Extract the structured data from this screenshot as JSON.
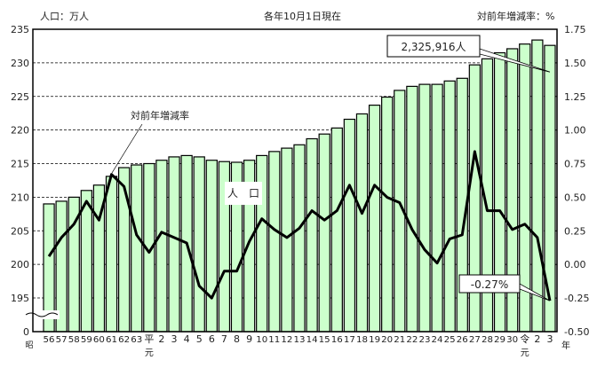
{
  "chart_data": {
    "type": "bar+line",
    "title": "各年10月1日現在",
    "left_axis_label": "人口：万人",
    "right_axis_label": "対前年増減率：%",
    "x_unit_label": "年",
    "era_labels": {
      "showa": "昭",
      "heisei": "平",
      "reiwa": "令",
      "gan": "元"
    },
    "categories": [
      "56",
      "57",
      "58",
      "59",
      "60",
      "61",
      "62",
      "63",
      "平元",
      "2",
      "3",
      "4",
      "5",
      "6",
      "7",
      "8",
      "9",
      "10",
      "11",
      "12",
      "13",
      "14",
      "15",
      "16",
      "17",
      "18",
      "19",
      "20",
      "21",
      "22",
      "23",
      "24",
      "25",
      "26",
      "27",
      "28",
      "29",
      "30",
      "令元",
      "2",
      "3"
    ],
    "left_ylim": [
      195,
      235
    ],
    "left_yticks": [
      235,
      230,
      225,
      220,
      215,
      210,
      205,
      200,
      195
    ],
    "left_zero_label": "0",
    "right_ylim": [
      -0.5,
      1.75
    ],
    "right_yticks": [
      "1.75",
      "1.50",
      "1.25",
      "1.00",
      "0.75",
      "0.50",
      "0.25",
      "0.00",
      "-0.25",
      "-0.50"
    ],
    "grid": true,
    "series": [
      {
        "name": "人　口",
        "type": "bar",
        "axis": "left",
        "color": "#ccffcc",
        "values": [
          209.0,
          209.4,
          210.0,
          211.0,
          211.8,
          213.1,
          214.4,
          214.8,
          215.0,
          215.5,
          216.0,
          216.2,
          216.0,
          215.5,
          215.3,
          215.2,
          215.5,
          216.2,
          216.8,
          217.3,
          217.8,
          218.7,
          219.4,
          220.3,
          221.6,
          222.4,
          223.7,
          224.9,
          225.9,
          226.5,
          226.8,
          226.8,
          227.3,
          227.7,
          229.7,
          230.6,
          231.5,
          232.1,
          232.8,
          233.4,
          232.6
        ]
      },
      {
        "name": "対前年増減率",
        "type": "line",
        "axis": "right",
        "color": "#000000",
        "values": [
          0.06,
          0.2,
          0.3,
          0.47,
          0.33,
          0.67,
          0.58,
          0.22,
          0.09,
          0.24,
          0.2,
          0.16,
          -0.16,
          -0.25,
          -0.05,
          -0.05,
          0.17,
          0.34,
          0.26,
          0.2,
          0.27,
          0.4,
          0.33,
          0.4,
          0.59,
          0.38,
          0.59,
          0.5,
          0.46,
          0.26,
          0.11,
          0.01,
          0.19,
          0.22,
          0.84,
          0.4,
          0.4,
          0.26,
          0.3,
          0.2,
          -0.27
        ]
      }
    ],
    "annotations": {
      "last_population": "2,325,916人",
      "last_rate": "-0.27%"
    }
  }
}
